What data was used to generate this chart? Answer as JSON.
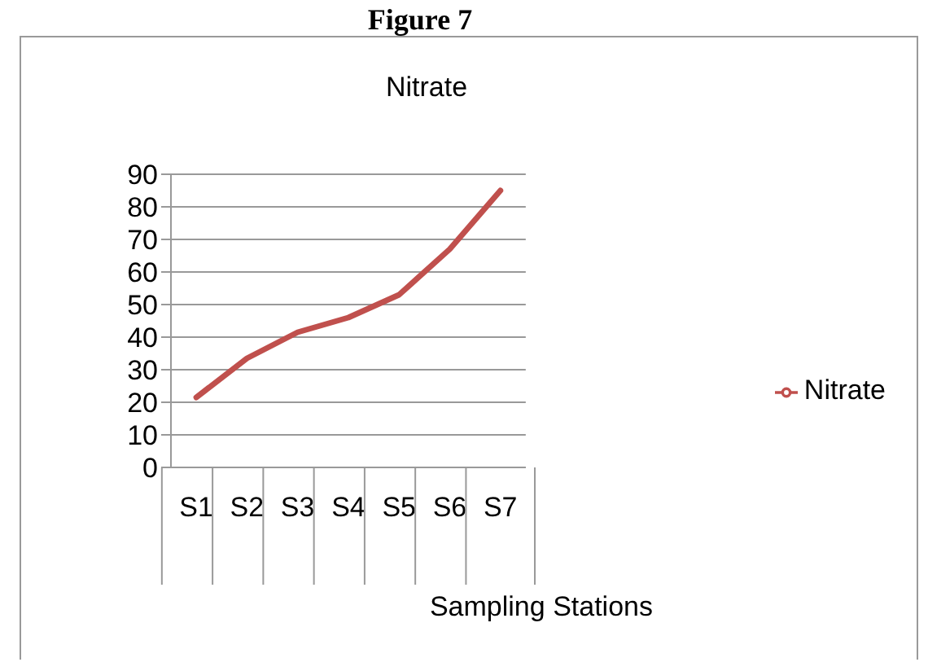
{
  "chart_data": {
    "type": "line",
    "title": "Nitrate",
    "xlabel": "Sampling Stations",
    "annotations": [
      "Figure 7"
    ],
    "categories": [
      "S1",
      "S2",
      "S3",
      "S4",
      "S5",
      "S6",
      "S7"
    ],
    "series": [
      {
        "name": "Nitrate",
        "color": "#c0504d",
        "values": [
          21.5,
          33.5,
          41.5,
          46,
          53,
          67,
          85
        ]
      }
    ],
    "ylim": [
      0,
      90
    ],
    "yticks": [
      0,
      10,
      20,
      30,
      40,
      50,
      60,
      70,
      80,
      90
    ],
    "grid": "y",
    "legend": "right",
    "marker": "none"
  }
}
